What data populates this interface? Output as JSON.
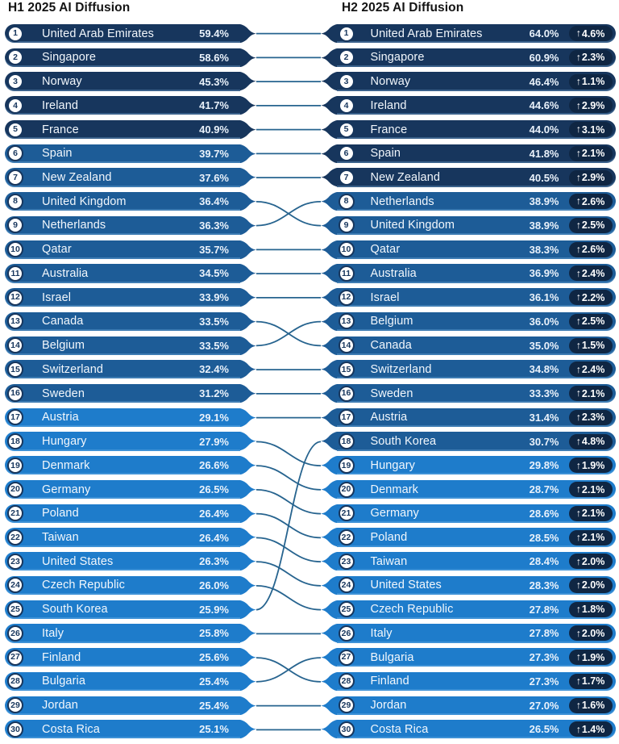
{
  "icons": {
    "up_arrow": "↑"
  },
  "colors": {
    "bar_dark": "#17365D",
    "bar_mid": "#1D5C97",
    "bar_bright": "#1E7CCB",
    "delta_badge": "#0F2643",
    "connector": "#27648F",
    "rank_text": "#17365D",
    "title_text": "#141414"
  },
  "bins": {
    "dark_min": 40,
    "mid_min": 30
  },
  "chart_data": {
    "type": "table",
    "subtype": "paired-rank-slope-comparison",
    "legend_position": "none",
    "grid": false,
    "h1": {
      "title": "H1 2025 AI Diffusion",
      "rows": [
        {
          "rank": 1,
          "country": "United Arab Emirates",
          "value": 59.4,
          "value_label": "59.4%"
        },
        {
          "rank": 2,
          "country": "Singapore",
          "value": 58.6,
          "value_label": "58.6%"
        },
        {
          "rank": 3,
          "country": "Norway",
          "value": 45.3,
          "value_label": "45.3%"
        },
        {
          "rank": 4,
          "country": "Ireland",
          "value": 41.7,
          "value_label": "41.7%"
        },
        {
          "rank": 5,
          "country": "France",
          "value": 40.9,
          "value_label": "40.9%"
        },
        {
          "rank": 6,
          "country": "Spain",
          "value": 39.7,
          "value_label": "39.7%"
        },
        {
          "rank": 7,
          "country": "New Zealand",
          "value": 37.6,
          "value_label": "37.6%"
        },
        {
          "rank": 8,
          "country": "United Kingdom",
          "value": 36.4,
          "value_label": "36.4%"
        },
        {
          "rank": 9,
          "country": "Netherlands",
          "value": 36.3,
          "value_label": "36.3%"
        },
        {
          "rank": 10,
          "country": "Qatar",
          "value": 35.7,
          "value_label": "35.7%"
        },
        {
          "rank": 11,
          "country": "Australia",
          "value": 34.5,
          "value_label": "34.5%"
        },
        {
          "rank": 12,
          "country": "Israel",
          "value": 33.9,
          "value_label": "33.9%"
        },
        {
          "rank": 13,
          "country": "Canada",
          "value": 33.5,
          "value_label": "33.5%"
        },
        {
          "rank": 14,
          "country": "Belgium",
          "value": 33.5,
          "value_label": "33.5%"
        },
        {
          "rank": 15,
          "country": "Switzerland",
          "value": 32.4,
          "value_label": "32.4%"
        },
        {
          "rank": 16,
          "country": "Sweden",
          "value": 31.2,
          "value_label": "31.2%"
        },
        {
          "rank": 17,
          "country": "Austria",
          "value": 29.1,
          "value_label": "29.1%"
        },
        {
          "rank": 18,
          "country": "Hungary",
          "value": 27.9,
          "value_label": "27.9%"
        },
        {
          "rank": 19,
          "country": "Denmark",
          "value": 26.6,
          "value_label": "26.6%"
        },
        {
          "rank": 20,
          "country": "Germany",
          "value": 26.5,
          "value_label": "26.5%"
        },
        {
          "rank": 21,
          "country": "Poland",
          "value": 26.4,
          "value_label": "26.4%"
        },
        {
          "rank": 22,
          "country": "Taiwan",
          "value": 26.4,
          "value_label": "26.4%"
        },
        {
          "rank": 23,
          "country": "United States",
          "value": 26.3,
          "value_label": "26.3%"
        },
        {
          "rank": 24,
          "country": "Czech Republic",
          "value": 26.0,
          "value_label": "26.0%"
        },
        {
          "rank": 25,
          "country": "South Korea",
          "value": 25.9,
          "value_label": "25.9%"
        },
        {
          "rank": 26,
          "country": "Italy",
          "value": 25.8,
          "value_label": "25.8%"
        },
        {
          "rank": 27,
          "country": "Finland",
          "value": 25.6,
          "value_label": "25.6%"
        },
        {
          "rank": 28,
          "country": "Bulgaria",
          "value": 25.4,
          "value_label": "25.4%"
        },
        {
          "rank": 29,
          "country": "Jordan",
          "value": 25.4,
          "value_label": "25.4%"
        },
        {
          "rank": 30,
          "country": "Costa Rica",
          "value": 25.1,
          "value_label": "25.1%"
        }
      ]
    },
    "h2": {
      "title": "H2 2025 AI Diffusion",
      "rows": [
        {
          "rank": 1,
          "country": "United Arab Emirates",
          "value": 64.0,
          "value_label": "64.0%",
          "delta": 4.6,
          "delta_label": "4.6%"
        },
        {
          "rank": 2,
          "country": "Singapore",
          "value": 60.9,
          "value_label": "60.9%",
          "delta": 2.3,
          "delta_label": "2.3%"
        },
        {
          "rank": 3,
          "country": "Norway",
          "value": 46.4,
          "value_label": "46.4%",
          "delta": 1.1,
          "delta_label": "1.1%"
        },
        {
          "rank": 4,
          "country": "Ireland",
          "value": 44.6,
          "value_label": "44.6%",
          "delta": 2.9,
          "delta_label": "2.9%"
        },
        {
          "rank": 5,
          "country": "France",
          "value": 44.0,
          "value_label": "44.0%",
          "delta": 3.1,
          "delta_label": "3.1%"
        },
        {
          "rank": 6,
          "country": "Spain",
          "value": 41.8,
          "value_label": "41.8%",
          "delta": 2.1,
          "delta_label": "2.1%"
        },
        {
          "rank": 7,
          "country": "New Zealand",
          "value": 40.5,
          "value_label": "40.5%",
          "delta": 2.9,
          "delta_label": "2.9%"
        },
        {
          "rank": 8,
          "country": "Netherlands",
          "value": 38.9,
          "value_label": "38.9%",
          "delta": 2.6,
          "delta_label": "2.6%"
        },
        {
          "rank": 9,
          "country": "United Kingdom",
          "value": 38.9,
          "value_label": "38.9%",
          "delta": 2.5,
          "delta_label": "2.5%"
        },
        {
          "rank": 10,
          "country": "Qatar",
          "value": 38.3,
          "value_label": "38.3%",
          "delta": 2.6,
          "delta_label": "2.6%"
        },
        {
          "rank": 11,
          "country": "Australia",
          "value": 36.9,
          "value_label": "36.9%",
          "delta": 2.4,
          "delta_label": "2.4%"
        },
        {
          "rank": 12,
          "country": "Israel",
          "value": 36.1,
          "value_label": "36.1%",
          "delta": 2.2,
          "delta_label": "2.2%"
        },
        {
          "rank": 13,
          "country": "Belgium",
          "value": 36.0,
          "value_label": "36.0%",
          "delta": 2.5,
          "delta_label": "2.5%"
        },
        {
          "rank": 14,
          "country": "Canada",
          "value": 35.0,
          "value_label": "35.0%",
          "delta": 1.5,
          "delta_label": "1.5%"
        },
        {
          "rank": 15,
          "country": "Switzerland",
          "value": 34.8,
          "value_label": "34.8%",
          "delta": 2.4,
          "delta_label": "2.4%"
        },
        {
          "rank": 16,
          "country": "Sweden",
          "value": 33.3,
          "value_label": "33.3%",
          "delta": 2.1,
          "delta_label": "2.1%"
        },
        {
          "rank": 17,
          "country": "Austria",
          "value": 31.4,
          "value_label": "31.4%",
          "delta": 2.3,
          "delta_label": "2.3%"
        },
        {
          "rank": 18,
          "country": "South Korea",
          "value": 30.7,
          "value_label": "30.7%",
          "delta": 4.8,
          "delta_label": "4.8%"
        },
        {
          "rank": 19,
          "country": "Hungary",
          "value": 29.8,
          "value_label": "29.8%",
          "delta": 1.9,
          "delta_label": "1.9%"
        },
        {
          "rank": 20,
          "country": "Denmark",
          "value": 28.7,
          "value_label": "28.7%",
          "delta": 2.1,
          "delta_label": "2.1%"
        },
        {
          "rank": 21,
          "country": "Germany",
          "value": 28.6,
          "value_label": "28.6%",
          "delta": 2.1,
          "delta_label": "2.1%"
        },
        {
          "rank": 22,
          "country": "Poland",
          "value": 28.5,
          "value_label": "28.5%",
          "delta": 2.1,
          "delta_label": "2.1%"
        },
        {
          "rank": 23,
          "country": "Taiwan",
          "value": 28.4,
          "value_label": "28.4%",
          "delta": 2.0,
          "delta_label": "2.0%"
        },
        {
          "rank": 24,
          "country": "United States",
          "value": 28.3,
          "value_label": "28.3%",
          "delta": 2.0,
          "delta_label": "2.0%"
        },
        {
          "rank": 25,
          "country": "Czech Republic",
          "value": 27.8,
          "value_label": "27.8%",
          "delta": 1.8,
          "delta_label": "1.8%"
        },
        {
          "rank": 26,
          "country": "Italy",
          "value": 27.8,
          "value_label": "27.8%",
          "delta": 2.0,
          "delta_label": "2.0%"
        },
        {
          "rank": 27,
          "country": "Bulgaria",
          "value": 27.3,
          "value_label": "27.3%",
          "delta": 1.9,
          "delta_label": "1.9%"
        },
        {
          "rank": 28,
          "country": "Finland",
          "value": 27.3,
          "value_label": "27.3%",
          "delta": 1.7,
          "delta_label": "1.7%"
        },
        {
          "rank": 29,
          "country": "Jordan",
          "value": 27.0,
          "value_label": "27.0%",
          "delta": 1.6,
          "delta_label": "1.6%"
        },
        {
          "rank": 30,
          "country": "Costa Rica",
          "value": 26.5,
          "value_label": "26.5%",
          "delta": 1.4,
          "delta_label": "1.4%"
        }
      ]
    },
    "links": [
      [
        1,
        1
      ],
      [
        2,
        2
      ],
      [
        3,
        3
      ],
      [
        4,
        4
      ],
      [
        5,
        5
      ],
      [
        6,
        6
      ],
      [
        7,
        7
      ],
      [
        8,
        9
      ],
      [
        9,
        8
      ],
      [
        10,
        10
      ],
      [
        11,
        11
      ],
      [
        12,
        12
      ],
      [
        13,
        14
      ],
      [
        14,
        13
      ],
      [
        15,
        15
      ],
      [
        16,
        16
      ],
      [
        17,
        17
      ],
      [
        18,
        19
      ],
      [
        19,
        20
      ],
      [
        20,
        21
      ],
      [
        21,
        22
      ],
      [
        22,
        23
      ],
      [
        23,
        24
      ],
      [
        24,
        25
      ],
      [
        25,
        18
      ],
      [
        26,
        26
      ],
      [
        27,
        28
      ],
      [
        28,
        27
      ],
      [
        29,
        29
      ],
      [
        30,
        30
      ]
    ]
  }
}
